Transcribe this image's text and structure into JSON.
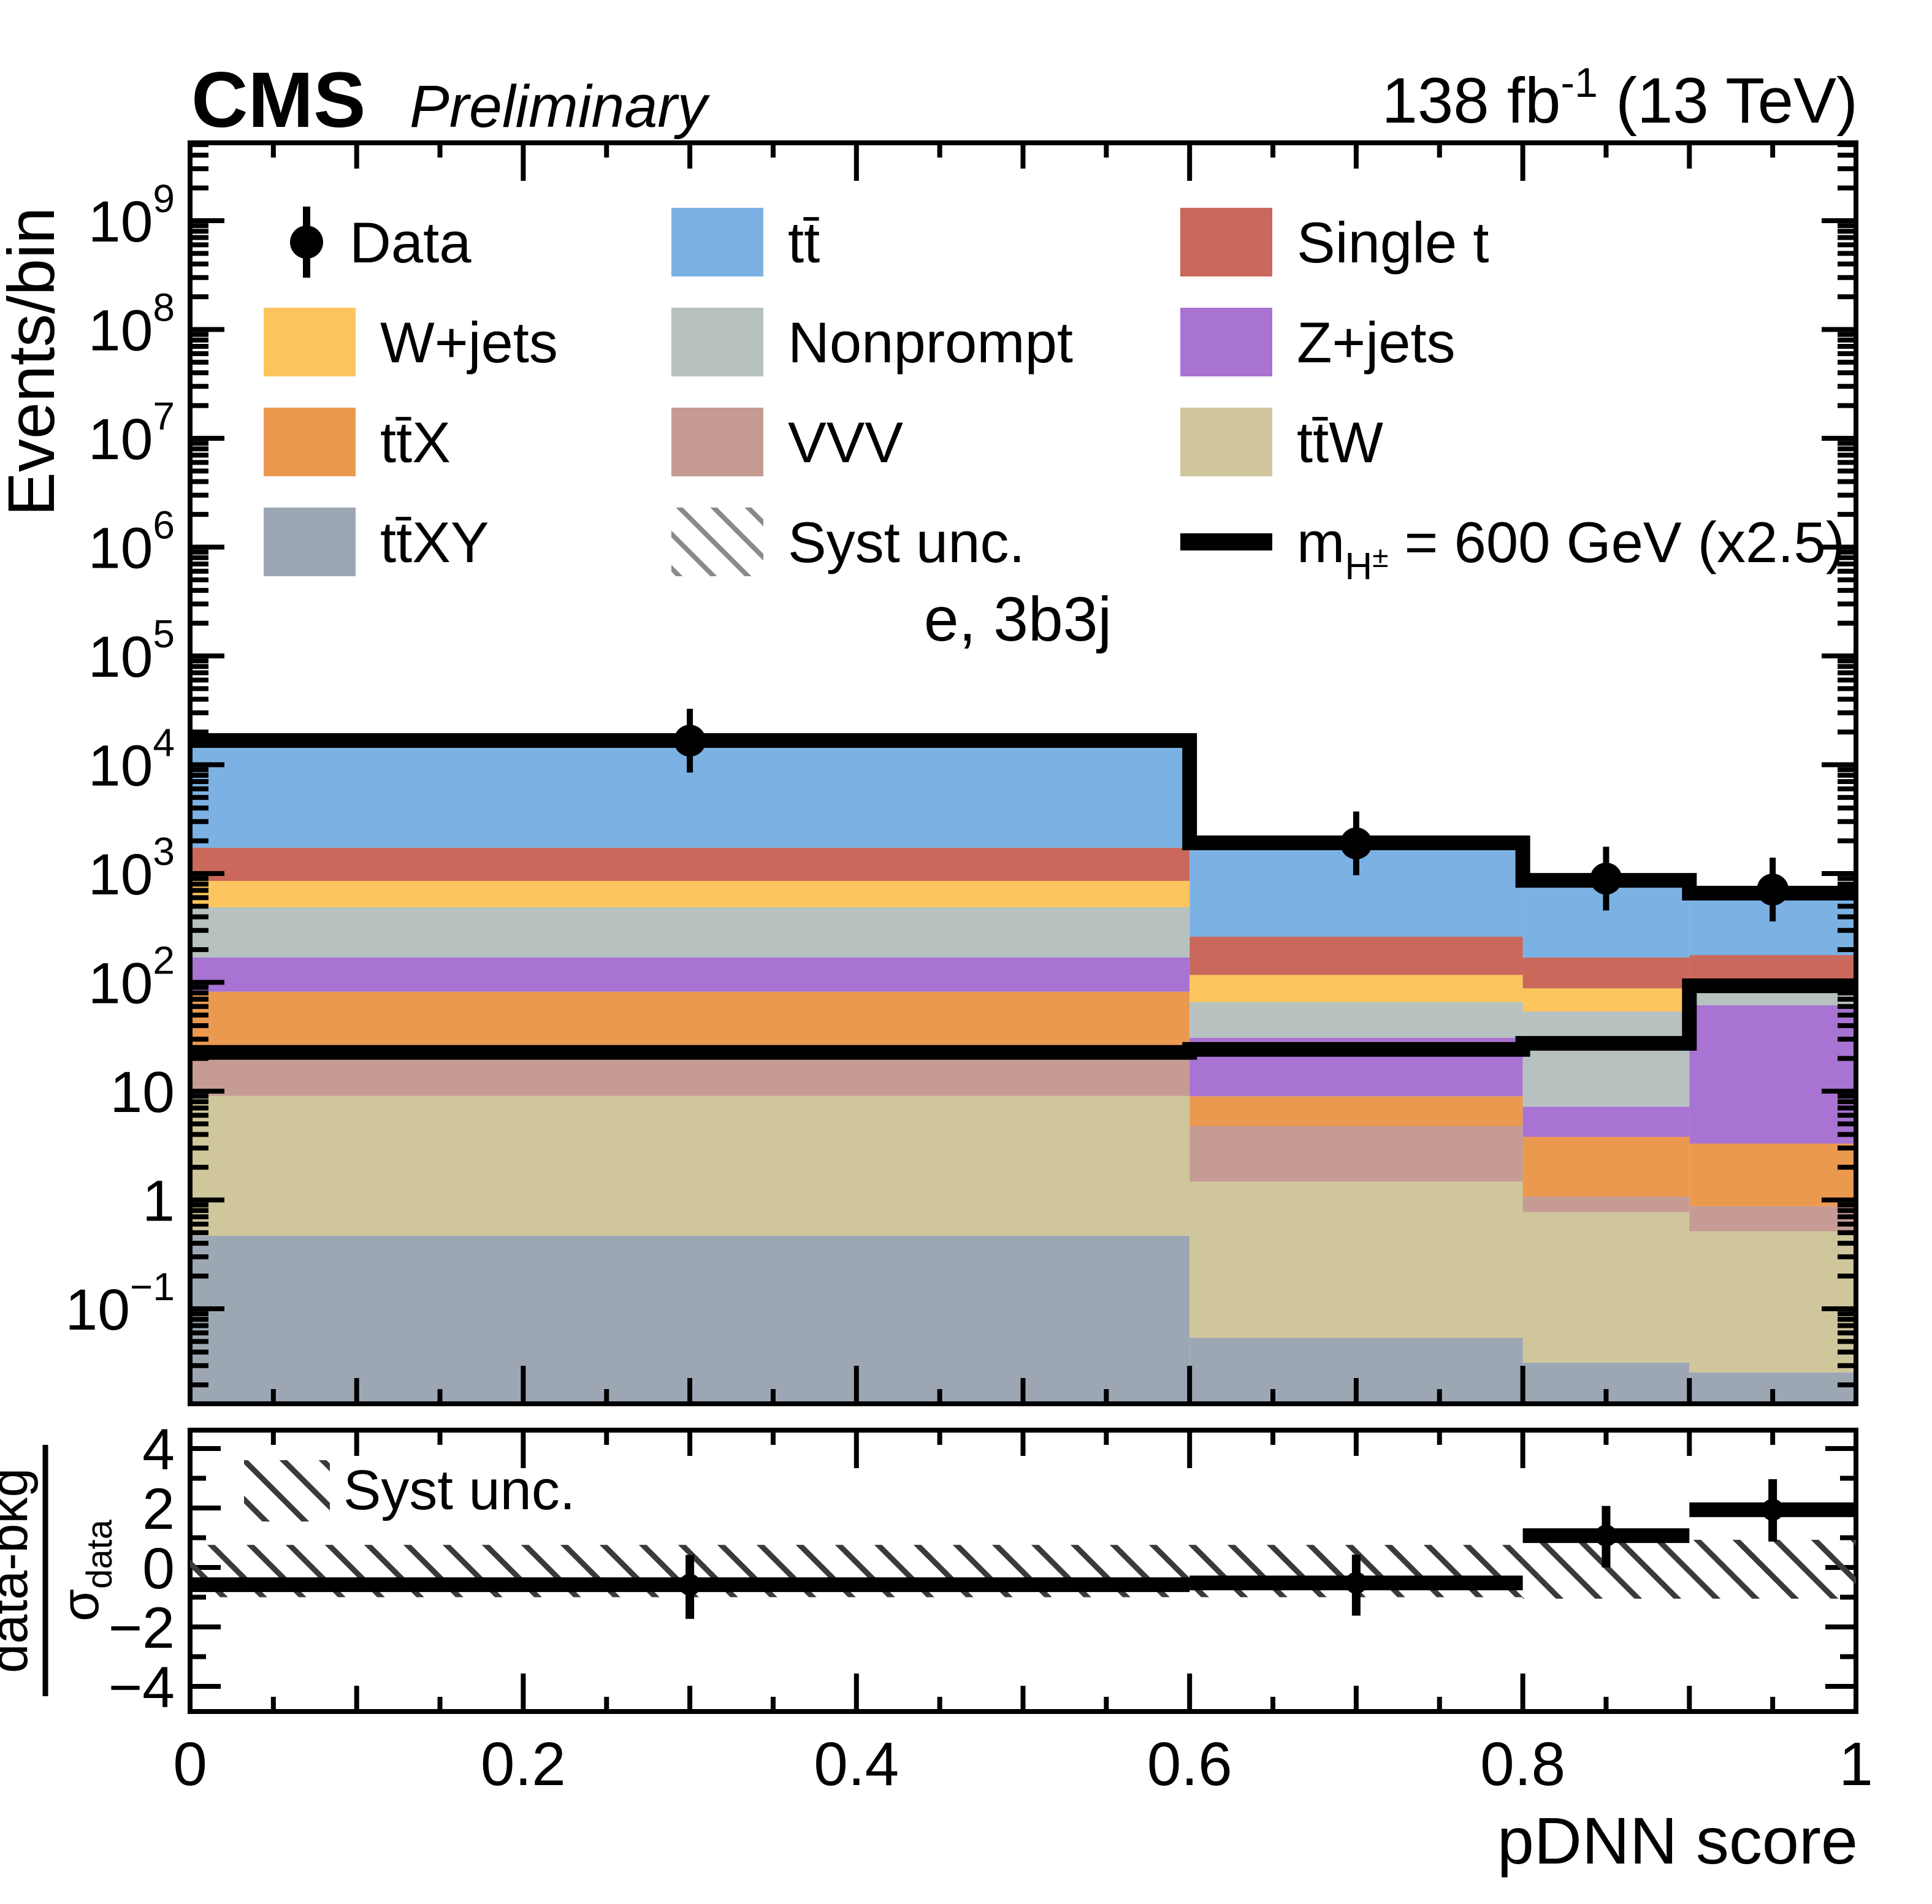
{
  "header": {
    "experiment": "CMS",
    "status": "Preliminary",
    "lumi_value": "138 fb",
    "lumi_exponent": "-1",
    "energy": " (13 TeV)"
  },
  "channel_label": "e, 3b3j",
  "chart_data": {
    "type": "stacked-step-histogram-log-with-ratio",
    "title": "e, 3b3j",
    "xlabel": "pDNN score",
    "ylabel": "Events/bin",
    "x_range": [
      0,
      1
    ],
    "x_ticks": [
      {
        "v": 0.0,
        "label": "0"
      },
      {
        "v": 0.2,
        "label": "0.2"
      },
      {
        "v": 0.4,
        "label": "0.4"
      },
      {
        "v": 0.6,
        "label": "0.6"
      },
      {
        "v": 0.8,
        "label": "0.8"
      },
      {
        "v": 1.0,
        "label": "1"
      }
    ],
    "y_scale": "log",
    "ylim": [
      0.0134,
      5200000000.0
    ],
    "y_decades_labeled": [
      9,
      8,
      7,
      6,
      5,
      4,
      3,
      2,
      1,
      0,
      -1
    ],
    "bin_edges": [
      0,
      0.6,
      0.8,
      0.9,
      1.0
    ],
    "series": [
      {
        "name": "ttXY",
        "label": "tt̄XY",
        "color": "#9da7b4",
        "values": [
          0.47,
          0.054,
          0.032,
          0.026
        ]
      },
      {
        "name": "ttW",
        "label": "tt̄W",
        "color": "#cfc69b",
        "values": [
          8.6,
          1.42,
          0.74,
          0.49
        ]
      },
      {
        "name": "VVV",
        "label": "VVV",
        "color": "#c59b93",
        "values": [
          16,
          3.3,
          0.3,
          0.36
        ]
      },
      {
        "name": "ttX",
        "label": "tt̄X",
        "color": "#ec9950",
        "values": [
          57,
          4.2,
          2.73,
          2.42
        ]
      },
      {
        "name": "Zjets",
        "label": "Z+jets",
        "color": "#a873d2",
        "values": [
          87,
          22,
          3.4,
          58.2
        ]
      },
      {
        "name": "Nonprompt",
        "label": "Nonprompt",
        "color": "#b7c2c0",
        "values": [
          321,
          35,
          46.8,
          22.5
        ]
      },
      {
        "name": "Wjets",
        "label": "W+jets",
        "color": "#fcc55d",
        "values": [
          366,
          51,
          34,
          16
        ]
      },
      {
        "name": "SingleT",
        "label": "Single t",
        "color": "#c9685b",
        "values": [
          870,
          146,
          81,
          78
        ]
      },
      {
        "name": "tt",
        "label": "tt̄",
        "color": "#7cb1e3",
        "values": [
          14974,
          1652,
          697,
          482
        ]
      }
    ],
    "totals": [
      16700,
      1915,
      866,
      660
    ],
    "data_points": {
      "label": "Data",
      "x": [
        0.3,
        0.7,
        0.85,
        0.95
      ],
      "values": [
        16630,
        1893,
        898,
        712
      ]
    },
    "signal": {
      "values": [
        22.7,
        24.2,
        27.5,
        93
      ],
      "scale_note": "(x2.5)",
      "label_prefix": "m",
      "label_sub": "H",
      "label_subsup": "±",
      "label_rest": " = 600 GeV (x2.5)"
    },
    "stack_syst_fraction": 0.12,
    "syst_label": "Syst unc.",
    "ratio": {
      "numerator": "data-bkg",
      "den_sigma": "σ",
      "den_sub": "data",
      "ylim": [
        -4.85,
        4.6
      ],
      "ticks": [
        {
          "v": 4,
          "label": "4"
        },
        {
          "v": 2,
          "label": "2"
        },
        {
          "v": 0,
          "label": "0"
        },
        {
          "v": -2,
          "label": "−2"
        },
        {
          "v": -4,
          "label": "−4"
        }
      ],
      "values": [
        -0.58,
        -0.52,
        1.07,
        1.94
      ],
      "err_hi": [
        1.0,
        0.95,
        1.0,
        1.03
      ],
      "err_lo": [
        1.15,
        1.1,
        1.07,
        1.07
      ],
      "syst_hi": [
        0.76,
        0.76,
        0.93,
        0.93
      ],
      "syst_lo": [
        -1.0,
        -1.0,
        -1.05,
        -1.05
      ],
      "legend_label": "Syst unc."
    },
    "legend_rows": [
      [
        {
          "type": "marker",
          "label": "Data"
        },
        {
          "type": "box",
          "series": "tt"
        },
        {
          "type": "box",
          "series": "SingleT"
        }
      ],
      [
        {
          "type": "box",
          "series": "Wjets"
        },
        {
          "type": "box",
          "series": "Nonprompt"
        },
        {
          "type": "box",
          "series": "Zjets"
        }
      ],
      [
        {
          "type": "box",
          "series": "ttX"
        },
        {
          "type": "box",
          "series": "VVV"
        },
        {
          "type": "box",
          "series": "ttW"
        }
      ],
      [
        {
          "type": "box",
          "series": "ttXY"
        },
        {
          "type": "hatch",
          "label": "Syst unc."
        },
        {
          "type": "line",
          "signal": true
        }
      ]
    ]
  }
}
